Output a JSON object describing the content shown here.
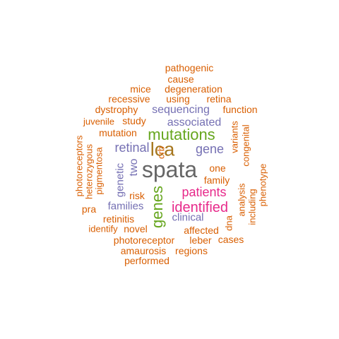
{
  "colors": {
    "orange": "#d95f02",
    "purple": "#7570b3",
    "green": "#66a61e",
    "brown": "#a6761d",
    "magenta": "#e7298a",
    "gray": "#666666"
  },
  "words": [
    {
      "text": "spata",
      "color": "gray",
      "vertical": false
    },
    {
      "text": "lca",
      "color": "brown",
      "vertical": false
    },
    {
      "text": "mutations",
      "color": "green",
      "vertical": false
    },
    {
      "text": "genes",
      "color": "green",
      "vertical": true
    },
    {
      "text": "identified",
      "color": "magenta",
      "vertical": false
    },
    {
      "text": "patients",
      "color": "magenta",
      "vertical": false
    },
    {
      "text": "retinal",
      "color": "purple",
      "vertical": false
    },
    {
      "text": "gene",
      "color": "purple",
      "vertical": false
    },
    {
      "text": "associated",
      "color": "purple",
      "vertical": false
    },
    {
      "text": "sequencing",
      "color": "purple",
      "vertical": false
    },
    {
      "text": "families",
      "color": "purple",
      "vertical": false
    },
    {
      "text": "clinical",
      "color": "purple",
      "vertical": false
    },
    {
      "text": "two",
      "color": "purple",
      "vertical": true
    },
    {
      "text": "genetic",
      "color": "purple",
      "vertical": true
    },
    {
      "text": "crb",
      "color": "orange",
      "vertical": true
    },
    {
      "text": "one",
      "color": "orange",
      "vertical": false
    },
    {
      "text": "family",
      "color": "orange",
      "vertical": false
    },
    {
      "text": "pathogenic",
      "color": "orange",
      "vertical": false
    },
    {
      "text": "cause",
      "color": "orange",
      "vertical": false
    },
    {
      "text": "mice",
      "color": "orange",
      "vertical": false
    },
    {
      "text": "degeneration",
      "color": "orange",
      "vertical": false
    },
    {
      "text": "recessive",
      "color": "orange",
      "vertical": false
    },
    {
      "text": "using",
      "color": "orange",
      "vertical": false
    },
    {
      "text": "retina",
      "color": "orange",
      "vertical": false
    },
    {
      "text": "dystrophy",
      "color": "orange",
      "vertical": false
    },
    {
      "text": "function",
      "color": "orange",
      "vertical": false
    },
    {
      "text": "juvenile",
      "color": "orange",
      "vertical": false
    },
    {
      "text": "study",
      "color": "orange",
      "vertical": false
    },
    {
      "text": "mutation",
      "color": "orange",
      "vertical": false
    },
    {
      "text": "variants",
      "color": "orange",
      "vertical": true
    },
    {
      "text": "congenital",
      "color": "orange",
      "vertical": true
    },
    {
      "text": "photoreceptors",
      "color": "orange",
      "vertical": true
    },
    {
      "text": "heterozygous",
      "color": "orange",
      "vertical": true
    },
    {
      "text": "pigmentosa",
      "color": "orange",
      "vertical": true
    },
    {
      "text": "phenotype",
      "color": "orange",
      "vertical": true
    },
    {
      "text": "analysis",
      "color": "orange",
      "vertical": true
    },
    {
      "text": "including",
      "color": "orange",
      "vertical": true
    },
    {
      "text": "dna",
      "color": "orange",
      "vertical": true
    },
    {
      "text": "risk",
      "color": "orange",
      "vertical": false
    },
    {
      "text": "pra",
      "color": "orange",
      "vertical": false
    },
    {
      "text": "retinitis",
      "color": "orange",
      "vertical": false
    },
    {
      "text": "identify",
      "color": "orange",
      "vertical": false
    },
    {
      "text": "novel",
      "color": "orange",
      "vertical": false
    },
    {
      "text": "affected",
      "color": "orange",
      "vertical": false
    },
    {
      "text": "photoreceptor",
      "color": "orange",
      "vertical": false
    },
    {
      "text": "leber",
      "color": "orange",
      "vertical": false
    },
    {
      "text": "cases",
      "color": "orange",
      "vertical": false
    },
    {
      "text": "amaurosis",
      "color": "orange",
      "vertical": false
    },
    {
      "text": "regions",
      "color": "orange",
      "vertical": false
    },
    {
      "text": "performed",
      "color": "orange",
      "vertical": false
    }
  ]
}
